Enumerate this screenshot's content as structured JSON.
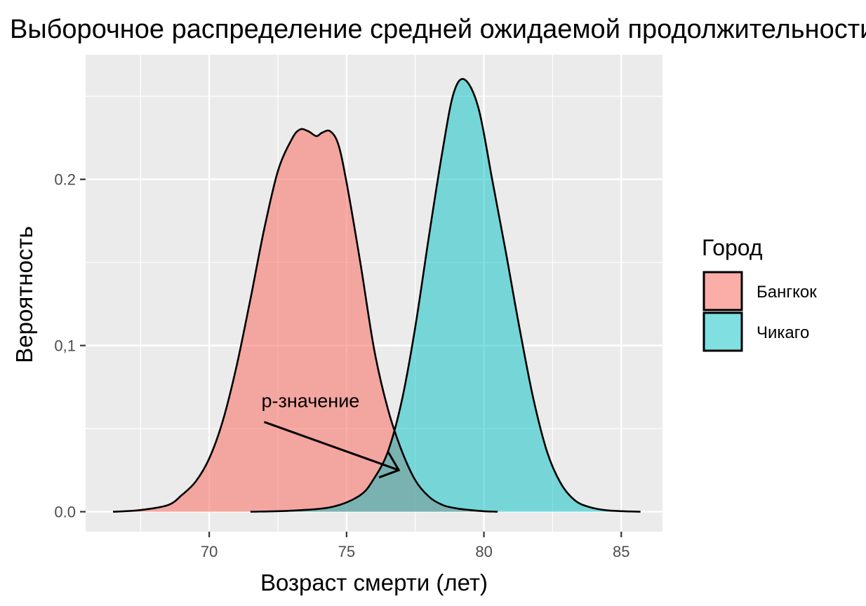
{
  "chart_data": {
    "type": "area",
    "title": "Выборочное распределение средней ожидаемой продолжительности жизни",
    "xlabel": "Возраст смерти (лет)",
    "ylabel": "Вероятность",
    "xlim": [
      65.5,
      86.5
    ],
    "ylim": [
      -0.012,
      0.275
    ],
    "x_ticks": [
      70,
      75,
      80,
      85
    ],
    "x_tick_labels": [
      "70",
      "75",
      "80",
      "85"
    ],
    "y_ticks": [
      0.0,
      0.1,
      0.2
    ],
    "y_tick_labels": [
      "0.0",
      "0,1",
      "0.2"
    ],
    "grid": true,
    "legend": {
      "title": "Город",
      "position": "right",
      "items": [
        "Бангкок",
        "Чикаго"
      ]
    },
    "series": [
      {
        "name": "Бангкок",
        "color": "#F8766D",
        "x": [
          66.5,
          67.5,
          68.5,
          69.0,
          69.5,
          70.0,
          70.5,
          71.0,
          71.5,
          72.0,
          72.5,
          73.0,
          73.3,
          73.6,
          73.9,
          74.1,
          74.4,
          74.7,
          75.0,
          75.5,
          76.0,
          76.5,
          77.0,
          77.5,
          78.0,
          78.5,
          79.0,
          79.5,
          80.0,
          80.5
        ],
        "y": [
          0.0,
          0.001,
          0.004,
          0.01,
          0.018,
          0.032,
          0.055,
          0.088,
          0.128,
          0.17,
          0.205,
          0.224,
          0.23,
          0.229,
          0.226,
          0.228,
          0.229,
          0.221,
          0.198,
          0.15,
          0.098,
          0.062,
          0.037,
          0.019,
          0.009,
          0.004,
          0.002,
          0.001,
          0.0003,
          0.0
        ]
      },
      {
        "name": "Чикаго",
        "color": "#00BFC4",
        "x": [
          71.5,
          73.0,
          74.5,
          75.5,
          76.0,
          76.5,
          77.0,
          77.5,
          78.0,
          78.5,
          78.9,
          79.3,
          79.8,
          80.3,
          80.8,
          81.3,
          81.8,
          82.3,
          82.8,
          83.3,
          83.8,
          84.5,
          85.7
        ],
        "y": [
          0.0,
          0.0006,
          0.003,
          0.01,
          0.02,
          0.036,
          0.066,
          0.111,
          0.166,
          0.218,
          0.252,
          0.26,
          0.243,
          0.2,
          0.156,
          0.11,
          0.068,
          0.036,
          0.017,
          0.007,
          0.003,
          0.0008,
          0.0
        ]
      }
    ],
    "annotation": {
      "text": "p-значение",
      "x": 71.9,
      "y": 0.063,
      "arrow_from": [
        72.0,
        0.054
      ],
      "arrow_to": [
        76.9,
        0.025
      ]
    }
  }
}
